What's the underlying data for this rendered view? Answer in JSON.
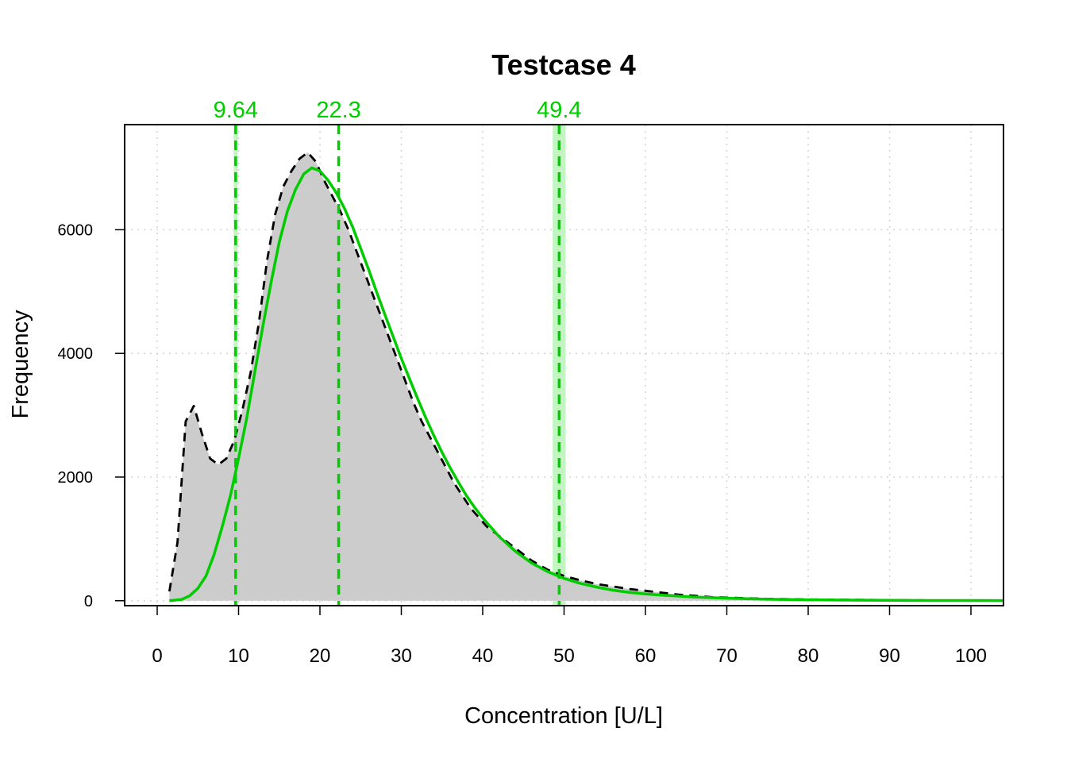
{
  "chart_data": {
    "type": "area",
    "title": "Testcase 4",
    "xlabel": "Concentration [U/L]",
    "ylabel": "Frequency",
    "xlim": [
      -4,
      104
    ],
    "ylim": [
      -80,
      7700
    ],
    "x_ticks": [
      0,
      10,
      20,
      30,
      40,
      50,
      60,
      70,
      80,
      90,
      100
    ],
    "y_ticks": [
      0,
      2000,
      4000,
      6000
    ],
    "grid": true,
    "colors": {
      "histogram": "#CCCCCC",
      "density": "#000000",
      "fit": "#00CC00",
      "ref_band": "#C2F5C2"
    },
    "histogram": {
      "x": [
        1.5,
        2.5,
        3.5,
        4.5,
        5.5,
        6.5,
        7.5,
        8.5,
        9.5,
        10.5,
        11.5,
        12.5,
        13.5,
        14.5,
        15.5,
        16.5,
        17.5,
        18.5,
        19.5,
        20.5,
        21.5,
        22.5,
        23.5,
        24.5,
        25.5,
        26.5,
        27.5,
        28.5,
        29.5,
        30.5,
        31.5,
        32.5,
        33.5,
        34.5,
        35.5,
        36.5,
        37.5,
        38.5,
        39.5,
        40.5,
        42,
        44,
        46,
        48,
        50,
        52,
        54,
        56,
        58,
        60,
        62,
        64,
        66,
        68,
        70,
        75,
        80,
        85,
        90,
        95,
        100,
        104
      ],
      "y": [
        150,
        950,
        2900,
        3100,
        2700,
        2300,
        2200,
        2300,
        2600,
        3100,
        3700,
        4500,
        5500,
        6250,
        6700,
        6950,
        7150,
        7250,
        7100,
        6800,
        6550,
        6300,
        6000,
        5650,
        5300,
        4950,
        4600,
        4250,
        3900,
        3550,
        3200,
        2900,
        2650,
        2400,
        2150,
        1900,
        1700,
        1500,
        1350,
        1200,
        1050,
        850,
        650,
        500,
        400,
        330,
        270,
        230,
        190,
        160,
        130,
        100,
        80,
        60,
        50,
        30,
        20,
        15,
        10,
        5,
        5,
        5
      ]
    },
    "series": [
      {
        "type": "density",
        "style": "dashed",
        "x": [
          1.5,
          2.5,
          3.5,
          4.5,
          5.5,
          6.5,
          7.5,
          8.5,
          9.5,
          10.5,
          11.5,
          12.5,
          13.5,
          14.5,
          15.5,
          16.5,
          17.5,
          18.5,
          19.5,
          20.5,
          21.5,
          22.5,
          23.5,
          24.5,
          25.5,
          26.5,
          27.5,
          28.5,
          29.5,
          30.5,
          31.5,
          32.5,
          33.5,
          34.5,
          35.5,
          36.5,
          37.5,
          38.5,
          39.5,
          40.5,
          42,
          44,
          46,
          48,
          50,
          52,
          54,
          56,
          58,
          60,
          62,
          64,
          66,
          68,
          70,
          75,
          80,
          85,
          90,
          95,
          100,
          104
        ],
        "y": [
          150,
          950,
          2900,
          3150,
          2700,
          2300,
          2200,
          2300,
          2600,
          3100,
          3700,
          4500,
          5500,
          6250,
          6700,
          6950,
          7150,
          7250,
          7100,
          6800,
          6550,
          6300,
          6000,
          5650,
          5300,
          4950,
          4600,
          4250,
          3900,
          3550,
          3200,
          2900,
          2650,
          2400,
          2150,
          1900,
          1700,
          1500,
          1350,
          1200,
          1050,
          850,
          650,
          500,
          400,
          330,
          270,
          230,
          190,
          160,
          130,
          100,
          80,
          60,
          50,
          30,
          20,
          15,
          10,
          5,
          5,
          5
        ]
      },
      {
        "type": "fit",
        "style": "solid",
        "x": [
          1.5,
          3,
          4,
          5,
          6,
          7,
          8,
          9,
          10,
          11,
          12,
          13,
          14,
          15,
          16,
          17,
          18,
          19,
          20,
          21,
          22,
          23,
          24,
          25,
          26,
          27,
          28,
          29,
          30,
          31,
          32,
          33,
          34,
          35,
          36,
          37,
          38,
          39,
          40,
          42,
          44,
          46,
          48,
          50,
          52,
          54,
          56,
          58,
          60,
          62,
          64,
          66,
          68,
          70,
          75,
          80,
          85,
          90,
          95,
          100,
          104
        ],
        "y": [
          0,
          20,
          80,
          200,
          400,
          750,
          1200,
          1700,
          2300,
          2950,
          3700,
          4450,
          5150,
          5800,
          6300,
          6650,
          6900,
          7000,
          6950,
          6800,
          6600,
          6350,
          6050,
          5700,
          5350,
          4980,
          4620,
          4270,
          3920,
          3590,
          3270,
          2960,
          2670,
          2400,
          2150,
          1920,
          1700,
          1510,
          1340,
          1040,
          800,
          610,
          470,
          360,
          280,
          220,
          170,
          135,
          110,
          90,
          75,
          60,
          50,
          40,
          25,
          15,
          10,
          6,
          4,
          3,
          2
        ]
      }
    ],
    "reference_lines": [
      {
        "value": 9.64,
        "label": "9.64",
        "band": [
          9.4,
          9.9
        ]
      },
      {
        "value": 22.3,
        "label": "22.3",
        "band": null
      },
      {
        "value": 49.4,
        "label": "49.4",
        "band": [
          48.6,
          50.2
        ]
      }
    ]
  }
}
